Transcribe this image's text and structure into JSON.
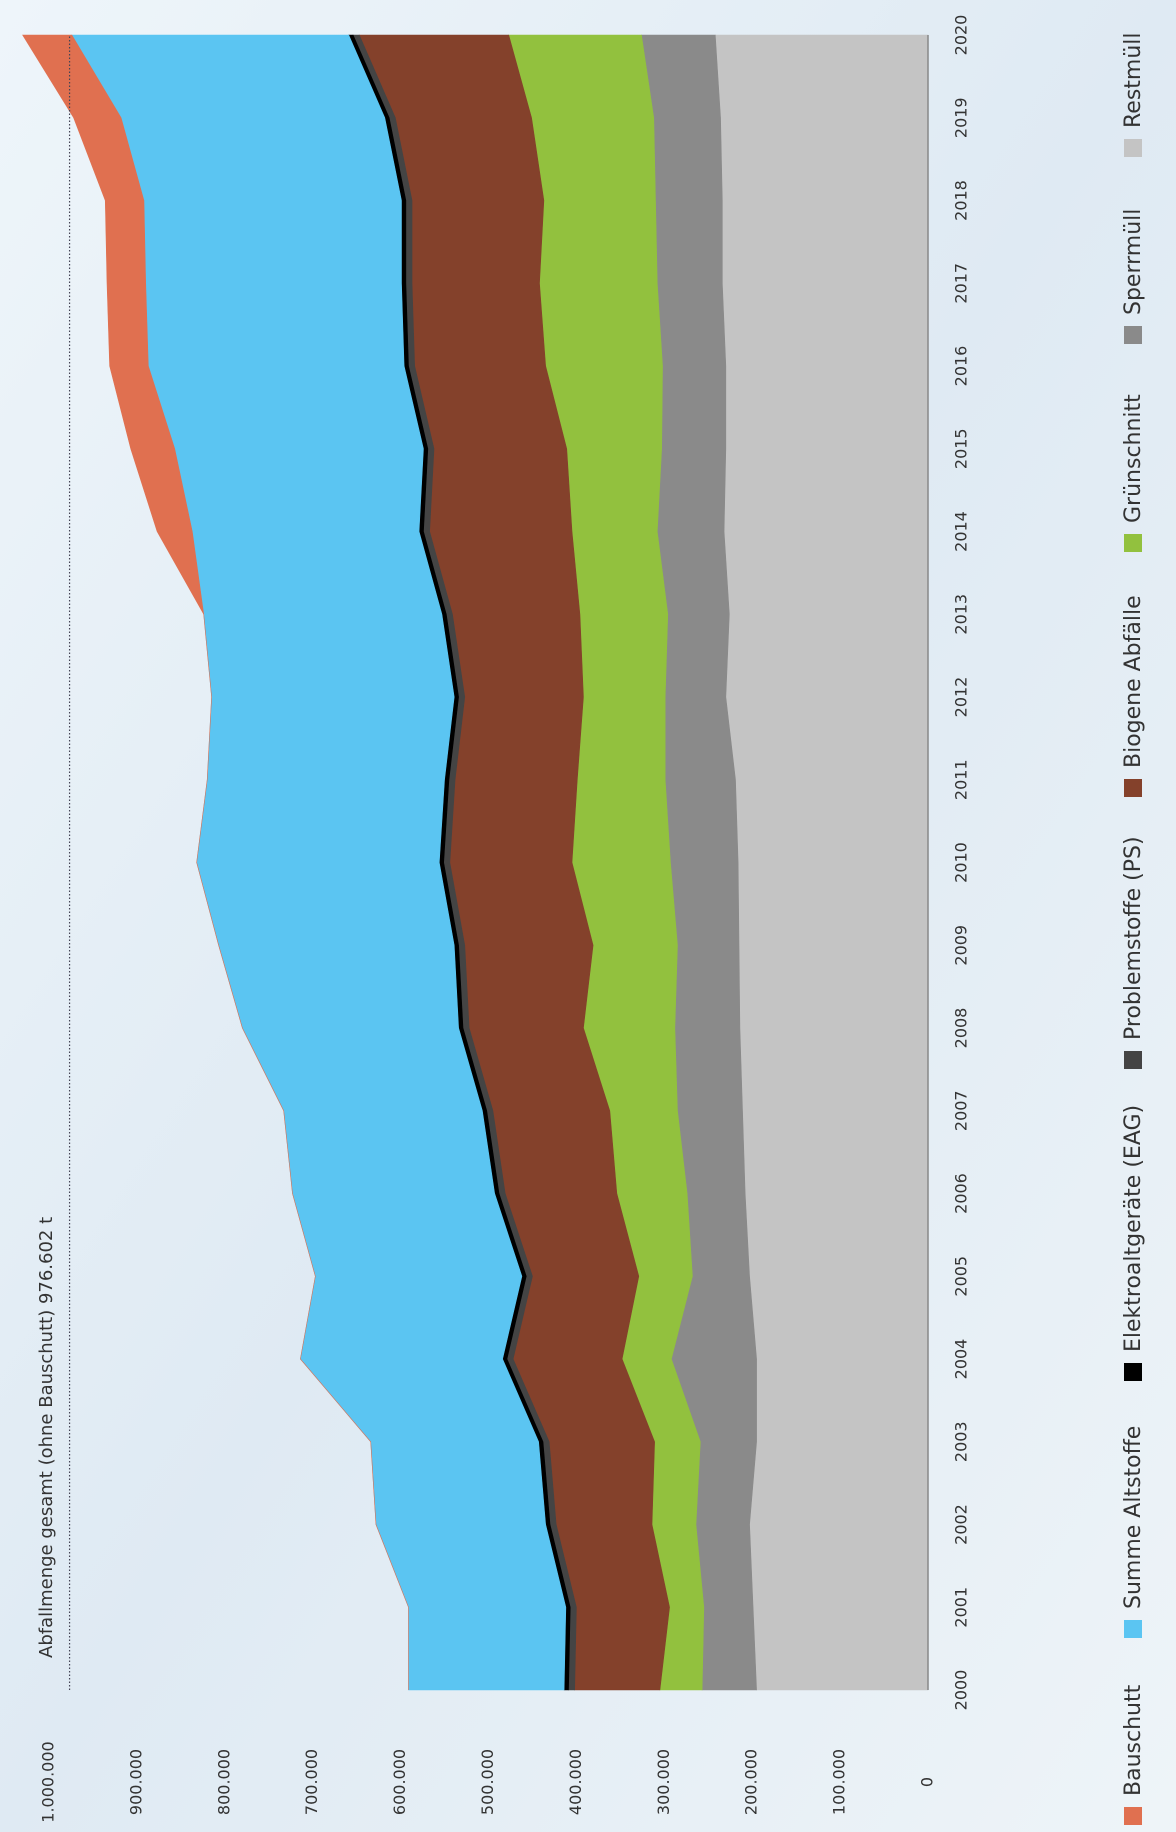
{
  "chart_data": {
    "type": "stacked_area",
    "annotation": "Abfallmenge gesamt (ohne Bauschutt) 976.602 t",
    "reference_line": 976602,
    "categories": [
      "2000",
      "2001",
      "2002",
      "2003",
      "2004",
      "2005",
      "2006",
      "2007",
      "2008",
      "2009",
      "2010",
      "2011",
      "2012",
      "2013",
      "2014",
      "2015",
      "2016",
      "2017",
      "2018",
      "2019",
      "2020"
    ],
    "series": [
      {
        "name": "Bauschutt",
        "color": "#e07050",
        "values": [
          0,
          0,
          0,
          0,
          0,
          0,
          0,
          0,
          0,
          0,
          0,
          0,
          0,
          0,
          40000,
          50000,
          44000,
          44000,
          44000,
          54000,
          56000
        ]
      },
      {
        "name": "Summe Altstoffe",
        "color": "#5bc5f2",
        "values": [
          177000,
          179000,
          193000,
          191000,
          230000,
          235000,
          230000,
          226000,
          246000,
          268000,
          276000,
          270000,
          276000,
          271000,
          258000,
          283000,
          291000,
          291000,
          293000,
          300000,
          315000
        ]
      },
      {
        "name": "Elektroaltgeräte (EAG)",
        "color": "#000000",
        "values": [
          5000,
          5000,
          5000,
          5000,
          5000,
          5000,
          5000,
          5000,
          5000,
          5000,
          5000,
          5000,
          5000,
          5000,
          5000,
          5000,
          5000,
          5000,
          5000,
          5000,
          5000
        ]
      },
      {
        "name": "Problemstoffe (PS)",
        "color": "#444444",
        "values": [
          7000,
          7000,
          7000,
          7000,
          7000,
          7000,
          7000,
          7000,
          7000,
          7000,
          7000,
          7000,
          7000,
          7000,
          7000,
          7000,
          7000,
          7000,
          7000,
          7000,
          7000
        ]
      },
      {
        "name": "Biogene Abfälle",
        "color": "#84412b",
        "values": [
          97000,
          106000,
          109000,
          120000,
          124000,
          121000,
          127000,
          133000,
          130000,
          146000,
          139000,
          139000,
          135000,
          145000,
          162000,
          151000,
          149000,
          145000,
          150000,
          155000,
          170000
        ]
      },
      {
        "name": "Grünschnitt",
        "color": "#92c13e",
        "values": [
          48000,
          39000,
          50000,
          52000,
          56000,
          61000,
          80000,
          77000,
          104000,
          96000,
          112000,
          100000,
          93000,
          100000,
          97000,
          108000,
          133000,
          134000,
          127000,
          139000,
          151000
        ]
      },
      {
        "name": "Sperrmüll",
        "color": "#8a8a8a",
        "values": [
          62000,
          56000,
          61000,
          64000,
          97000,
          65000,
          66000,
          74000,
          74000,
          70000,
          77000,
          80000,
          69000,
          70000,
          76000,
          73000,
          72000,
          74000,
          76000,
          76000,
          84000
        ]
      },
      {
        "name": "Restmüll",
        "color": "#c4c4c4",
        "values": [
          195000,
          199000,
          203000,
          195000,
          195000,
          203000,
          208000,
          211000,
          214000,
          215000,
          216000,
          219000,
          230000,
          226000,
          232000,
          230000,
          230000,
          234000,
          234000,
          236000,
          242000
        ]
      }
    ],
    "ylim": [
      0,
      1000000
    ],
    "yticks": [
      0,
      {
        "value": 100000,
        "label": "100.000"
      },
      {
        "value": 200000,
        "label": "200.000"
      },
      {
        "value": 300000,
        "label": "300.000"
      },
      {
        "value": 400000,
        "label": "400.000"
      },
      {
        "value": 500000,
        "label": "500.000"
      },
      {
        "value": 600000,
        "label": "600.000"
      },
      {
        "value": 700000,
        "label": "700.000"
      },
      {
        "value": 800000,
        "label": "800.000"
      },
      {
        "value": 900000,
        "label": "900.000"
      },
      {
        "value": 1000000,
        "label": "1.000.000"
      }
    ],
    "legend": "bottom"
  }
}
